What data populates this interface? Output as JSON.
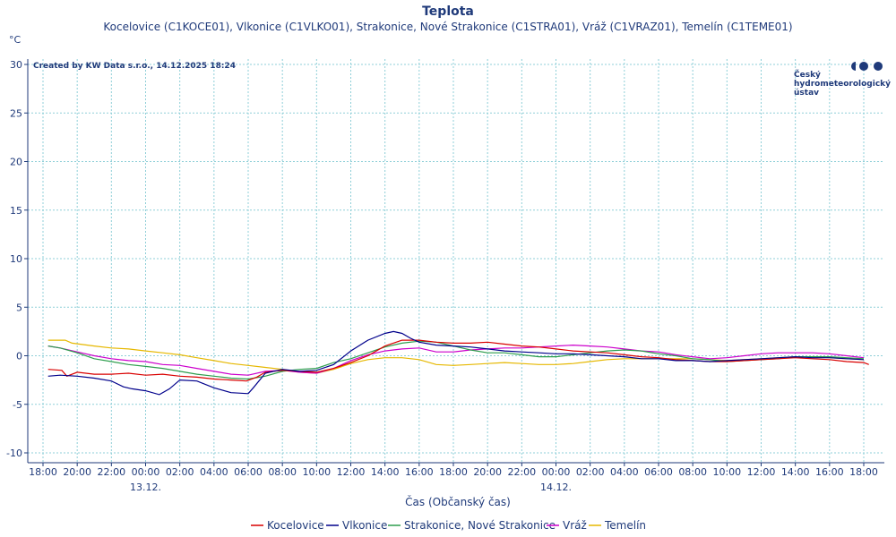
{
  "chart_data": {
    "type": "line",
    "title": "Teplota",
    "subtitle": "Kocelovice (C1KOCE01), Vlkonice (C1VLKO01), Strakonice, Nové Strakonice (C1STRA01), Vráž (C1VRAZ01), Temelín (C1TEME01)",
    "ylabel": "°C",
    "xlabel": "Čas (Občanský čas)",
    "ylim": [
      -10,
      30
    ],
    "yticks": [
      30,
      25,
      20,
      15,
      10,
      5,
      0,
      -5,
      -10
    ],
    "xlim_hours": [
      -6.6,
      43.2
    ],
    "xticks": [
      {
        "hour": -6,
        "label": "18:00"
      },
      {
        "hour": -4,
        "label": "20:00"
      },
      {
        "hour": -2,
        "label": "22:00"
      },
      {
        "hour": 0,
        "label": "00:00",
        "date": "13.12."
      },
      {
        "hour": 2,
        "label": "02:00"
      },
      {
        "hour": 4,
        "label": "04:00"
      },
      {
        "hour": 6,
        "label": "06:00"
      },
      {
        "hour": 8,
        "label": "08:00"
      },
      {
        "hour": 10,
        "label": "10:00"
      },
      {
        "hour": 12,
        "label": "12:00"
      },
      {
        "hour": 14,
        "label": "14:00"
      },
      {
        "hour": 16,
        "label": "16:00"
      },
      {
        "hour": 18,
        "label": "18:00"
      },
      {
        "hour": 20,
        "label": "20:00"
      },
      {
        "hour": 22,
        "label": "22:00"
      },
      {
        "hour": 24,
        "label": "00:00",
        "date": "14.12."
      },
      {
        "hour": 26,
        "label": "02:00"
      },
      {
        "hour": 28,
        "label": "04:00"
      },
      {
        "hour": 30,
        "label": "06:00"
      },
      {
        "hour": 32,
        "label": "08:00"
      },
      {
        "hour": 34,
        "label": "10:00"
      },
      {
        "hour": 36,
        "label": "12:00"
      },
      {
        "hour": 38,
        "label": "14:00"
      },
      {
        "hour": 40,
        "label": "16:00"
      },
      {
        "hour": 42,
        "label": "18:00"
      }
    ],
    "grid": true,
    "legend_position": "bottom",
    "series": [
      {
        "name": "Kocelovice",
        "color": "#d90000",
        "x": [
          -5.7,
          -4.9,
          -4.6,
          -4,
          -3,
          -2,
          -1,
          0,
          1,
          2,
          3,
          4,
          5,
          5.9,
          6.5,
          7,
          8,
          9,
          10,
          11,
          12,
          13,
          14,
          15,
          16,
          17,
          18,
          19,
          20,
          21,
          22,
          23,
          24,
          25,
          26,
          27,
          28,
          29,
          30,
          31,
          32,
          33,
          34,
          35,
          36,
          37,
          38,
          39,
          40,
          41,
          42,
          42.3
        ],
        "y": [
          -1.4,
          -1.5,
          -2.1,
          -1.7,
          -1.9,
          -1.9,
          -1.8,
          -2.0,
          -1.9,
          -2.1,
          -2.2,
          -2.4,
          -2.5,
          -2.6,
          -2.2,
          -1.7,
          -1.5,
          -1.6,
          -1.7,
          -1.3,
          -0.7,
          0.0,
          1.0,
          1.6,
          1.6,
          1.4,
          1.3,
          1.3,
          1.4,
          1.2,
          1.0,
          0.9,
          0.7,
          0.5,
          0.4,
          0.3,
          0.1,
          -0.1,
          -0.2,
          -0.4,
          -0.5,
          -0.6,
          -0.6,
          -0.5,
          -0.4,
          -0.3,
          -0.2,
          -0.3,
          -0.4,
          -0.6,
          -0.7,
          -0.9
        ]
      },
      {
        "name": "Vlkonice",
        "color": "#00008b",
        "x": [
          -5.7,
          -5,
          -4,
          -3,
          -2,
          -1.3,
          -0.8,
          0,
          0.8,
          1.4,
          2,
          3,
          4,
          5,
          6,
          6.3,
          7,
          8,
          9,
          10,
          11,
          12,
          13,
          14,
          14.5,
          15,
          15.5,
          16,
          17,
          18,
          19,
          20,
          21,
          22,
          23,
          24,
          25,
          26,
          27,
          28,
          29,
          30,
          31,
          32,
          33,
          34,
          35,
          36,
          37,
          38,
          39,
          40,
          41,
          42
        ],
        "y": [
          -2.1,
          -2.0,
          -2.1,
          -2.3,
          -2.6,
          -3.2,
          -3.4,
          -3.6,
          -4.0,
          -3.4,
          -2.5,
          -2.6,
          -3.3,
          -3.8,
          -3.9,
          -3.3,
          -1.8,
          -1.4,
          -1.6,
          -1.5,
          -0.9,
          0.5,
          1.6,
          2.3,
          2.5,
          2.3,
          1.8,
          1.4,
          1.1,
          1.0,
          0.9,
          0.7,
          0.5,
          0.4,
          0.3,
          0.2,
          0.2,
          0.1,
          0.0,
          -0.1,
          -0.3,
          -0.3,
          -0.5,
          -0.5,
          -0.6,
          -0.5,
          -0.4,
          -0.3,
          -0.2,
          -0.1,
          -0.2,
          -0.2,
          -0.3,
          -0.4
        ]
      },
      {
        "name": "Strakonice, Nové Strakonice",
        "color": "#2e9e4e",
        "x": [
          -5.7,
          -5,
          -4,
          -3,
          -2,
          -1,
          0,
          1,
          2,
          3,
          4,
          5,
          6,
          7,
          8,
          9,
          10,
          11,
          12,
          13,
          14,
          15,
          16,
          17,
          18,
          19,
          20,
          21,
          22,
          23,
          24,
          25,
          26,
          27,
          28,
          29,
          30,
          31,
          32,
          33,
          34,
          35,
          36,
          37,
          38,
          39,
          40,
          41,
          42
        ],
        "y": [
          1.0,
          0.8,
          0.3,
          -0.3,
          -0.6,
          -0.9,
          -1.1,
          -1.3,
          -1.6,
          -1.9,
          -2.1,
          -2.3,
          -2.4,
          -2.1,
          -1.6,
          -1.4,
          -1.3,
          -0.7,
          -0.3,
          0.3,
          0.9,
          1.3,
          1.5,
          1.4,
          1.0,
          0.6,
          0.3,
          0.3,
          0.1,
          -0.1,
          -0.1,
          0.1,
          0.3,
          0.5,
          0.6,
          0.5,
          0.2,
          0.0,
          -0.3,
          -0.4,
          -0.6,
          -0.5,
          -0.4,
          -0.3,
          -0.1,
          -0.1,
          -0.1,
          -0.2,
          -0.3
        ]
      },
      {
        "name": "Vráž",
        "color": "#cc00cc",
        "x": [
          -5.7,
          -5,
          -4,
          -3,
          -2,
          -1,
          0,
          1,
          2,
          3,
          4,
          5,
          6,
          7,
          8,
          9,
          10,
          11,
          12,
          13,
          14,
          15,
          16,
          17,
          18,
          19,
          20,
          21,
          22,
          23,
          24,
          25,
          26,
          27,
          28,
          29,
          30,
          31,
          32,
          33,
          34,
          35,
          36,
          37,
          38,
          39,
          40,
          41,
          42
        ],
        "y": [
          1.0,
          0.8,
          0.4,
          0.0,
          -0.3,
          -0.5,
          -0.6,
          -0.9,
          -1.0,
          -1.3,
          -1.6,
          -1.9,
          -2.0,
          -1.6,
          -1.5,
          -1.7,
          -1.8,
          -1.3,
          -0.5,
          0.1,
          0.5,
          0.7,
          0.8,
          0.4,
          0.4,
          0.6,
          0.7,
          0.8,
          0.8,
          0.9,
          1.0,
          1.1,
          1.0,
          0.9,
          0.7,
          0.5,
          0.4,
          0.1,
          -0.1,
          -0.3,
          -0.2,
          0.0,
          0.2,
          0.3,
          0.3,
          0.3,
          0.2,
          0.0,
          -0.2
        ]
      },
      {
        "name": "Temelín",
        "color": "#e6b800",
        "x": [
          -5.7,
          -4.7,
          -4.3,
          -3,
          -2,
          -1,
          0,
          1,
          2,
          3,
          4,
          5,
          6,
          7,
          8,
          9,
          10,
          11,
          12,
          13,
          14,
          15,
          16,
          17,
          18,
          19,
          20,
          21,
          22,
          23,
          24,
          25,
          26,
          27,
          28,
          29,
          30,
          31,
          32,
          33,
          34,
          35,
          36,
          37,
          38,
          39,
          40,
          41,
          42
        ],
        "y": [
          1.6,
          1.6,
          1.3,
          1.0,
          0.8,
          0.7,
          0.5,
          0.3,
          0.1,
          -0.2,
          -0.5,
          -0.8,
          -1.0,
          -1.2,
          -1.4,
          -1.7,
          -1.8,
          -1.4,
          -0.8,
          -0.4,
          -0.2,
          -0.2,
          -0.4,
          -0.9,
          -1.0,
          -0.9,
          -0.8,
          -0.7,
          -0.8,
          -0.9,
          -0.9,
          -0.8,
          -0.6,
          -0.4,
          -0.3,
          -0.3,
          -0.3,
          -0.3,
          -0.3,
          -0.4,
          -0.5,
          -0.4,
          -0.3,
          -0.2,
          -0.1,
          -0.1,
          -0.2,
          -0.3,
          -0.4
        ]
      }
    ]
  },
  "credit": "Created by KW Data s.r.o., 14.12.2025 18:24",
  "logo": {
    "line1": "Český",
    "line2": "hydrometeorologický",
    "line3": "ústav"
  }
}
